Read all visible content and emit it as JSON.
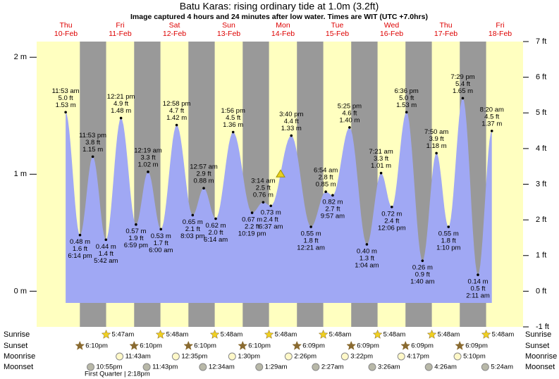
{
  "chart_data": {
    "type": "tide",
    "title": "Batu Karas: rising  ordinary tide at 1.0m (3.2ft)",
    "subtitle": "Image captured 4 hours and 24 minutes after low water. Times are WIT (UTC +7.0hrs)",
    "current_level": 1.0,
    "ylim": [
      -0.305,
      2.134
    ],
    "yticks": [
      {
        "value": 0,
        "label": "0 m"
      },
      {
        "value": 1,
        "label": "1 m"
      },
      {
        "value": 2,
        "label": "2 m"
      }
    ],
    "y2lim": [
      -1,
      7
    ],
    "y2ticks": [
      {
        "value": -1,
        "label": "-1 ft"
      },
      {
        "value": 0,
        "label": "0 ft"
      },
      {
        "value": 1,
        "label": "1 ft"
      },
      {
        "value": 2,
        "label": "2 ft"
      },
      {
        "value": 3,
        "label": "3 ft"
      },
      {
        "value": 4,
        "label": "4 ft"
      },
      {
        "value": 5,
        "label": "5 ft"
      },
      {
        "value": 6,
        "label": "6 ft"
      },
      {
        "value": 7,
        "label": "7 ft"
      }
    ],
    "row_labels": {
      "sunrise": "Sunrise",
      "sunset": "Sunset",
      "moonrise": "Moonrise",
      "moonset": "Moonset"
    },
    "moon_phase": "First Quarter | 2:18pm",
    "days": [
      {
        "day": "Thu",
        "date": "10-Feb",
        "sunset": "6:10pm",
        "moonset": "10:55pm",
        "tides": [
          {
            "time": "11:53 am",
            "ft": "5.0 ft",
            "value": 1.53,
            "value_label": "1.53 m"
          },
          {
            "time": "6:14 pm",
            "ft": "1.6 ft",
            "value": 0.48,
            "value_label": "0.48 m"
          },
          {
            "time": "11:53 pm",
            "ft": "3.8 ft",
            "value": 1.15,
            "value_label": "1.15 m"
          }
        ]
      },
      {
        "day": "Fri",
        "date": "11-Feb",
        "sunrise": "5:47am",
        "sunset": "6:10pm",
        "moonrise": "11:43am",
        "moonset": "11:43pm",
        "tides": [
          {
            "time": "5:42 am",
            "ft": "1.4 ft",
            "value": 0.44,
            "value_label": "0.44 m"
          },
          {
            "time": "12:21 pm",
            "ft": "4.9 ft",
            "value": 1.48,
            "value_label": "1.48 m"
          },
          {
            "time": "6:59 pm",
            "ft": "1.9 ft",
            "value": 0.57,
            "value_label": "0.57 m"
          }
        ]
      },
      {
        "day": "Sat",
        "date": "12-Feb",
        "sunrise": "5:48am",
        "sunset": "6:10pm",
        "moonrise": "12:35pm",
        "tides": [
          {
            "time": "12:19 am",
            "ft": "3.3 ft",
            "value": 1.02,
            "value_label": "1.02 m"
          },
          {
            "time": "6:00 am",
            "ft": "1.7 ft",
            "value": 0.53,
            "value_label": "0.53 m"
          },
          {
            "time": "12:58 pm",
            "ft": "4.7 ft",
            "value": 1.42,
            "value_label": "1.42 m"
          },
          {
            "time": "8:03 pm",
            "ft": "2.1 ft",
            "value": 0.65,
            "value_label": "0.65 m"
          }
        ]
      },
      {
        "day": "Sun",
        "date": "13-Feb",
        "sunrise": "5:48am",
        "sunset": "6:10pm",
        "moonrise": "1:30pm",
        "moonset": "12:34am",
        "tides": [
          {
            "time": "12:57 am",
            "ft": "2.9 ft",
            "value": 0.88,
            "value_label": "0.88 m"
          },
          {
            "time": "6:14 am",
            "ft": "2.0 ft",
            "value": 0.62,
            "value_label": "0.62 m"
          },
          {
            "time": "1:56 pm",
            "ft": "4.5 ft",
            "value": 1.36,
            "value_label": "1.36 m"
          },
          {
            "time": "10:19 pm",
            "ft": "2.2 ft",
            "value": 0.67,
            "value_label": "0.67 m"
          }
        ]
      },
      {
        "day": "Mon",
        "date": "14-Feb",
        "sunrise": "5:48am",
        "sunset": "6:09pm",
        "moonrise": "2:26pm",
        "moonset": "1:29am",
        "tides": [
          {
            "time": "3:14 am",
            "ft": "2.5 ft",
            "value": 0.76,
            "value_label": "0.76 m"
          },
          {
            "time": "6:37 am",
            "ft": "2.4 ft",
            "value": 0.73,
            "value_label": "0.73 m"
          },
          {
            "time": "3:40 pm",
            "ft": "4.4 ft",
            "value": 1.33,
            "value_label": "1.33 m"
          }
        ]
      },
      {
        "day": "Tue",
        "date": "15-Feb",
        "sunrise": "5:48am",
        "sunset": "6:09pm",
        "moonrise": "3:22pm",
        "moonset": "2:27am",
        "tides": [
          {
            "time": "12:21 am",
            "ft": "1.8 ft",
            "value": 0.55,
            "value_label": "0.55 m"
          },
          {
            "time": "6:54 am",
            "ft": "2.8 ft",
            "value": 0.85,
            "value_label": "0.85 m"
          },
          {
            "time": "9:57 am",
            "ft": "2.7 ft",
            "value": 0.82,
            "value_label": "0.82 m"
          },
          {
            "time": "5:25 pm",
            "ft": "4.6 ft",
            "value": 1.4,
            "value_label": "1.40 m"
          }
        ]
      },
      {
        "day": "Wed",
        "date": "16-Feb",
        "sunrise": "5:48am",
        "sunset": "6:09pm",
        "moonrise": "4:17pm",
        "moonset": "3:26am",
        "tides": [
          {
            "time": "1:04 am",
            "ft": "1.3 ft",
            "value": 0.4,
            "value_label": "0.40 m"
          },
          {
            "time": "7:21 am",
            "ft": "3.3 ft",
            "value": 1.01,
            "value_label": "1.01 m"
          },
          {
            "time": "12:06 pm",
            "ft": "2.4 ft",
            "value": 0.72,
            "value_label": "0.72 m"
          },
          {
            "time": "6:36 pm",
            "ft": "5.0 ft",
            "value": 1.53,
            "value_label": "1.53 m"
          }
        ]
      },
      {
        "day": "Thu",
        "date": "17-Feb",
        "sunrise": "5:48am",
        "sunset": "6:09pm",
        "moonrise": "5:10pm",
        "moonset": "4:26am",
        "tides": [
          {
            "time": "1:40 am",
            "ft": "0.9 ft",
            "value": 0.26,
            "value_label": "0.26 m"
          },
          {
            "time": "7:50 am",
            "ft": "3.9 ft",
            "value": 1.18,
            "value_label": "1.18 m"
          },
          {
            "time": "1:10 pm",
            "ft": "1.8 ft",
            "value": 0.55,
            "value_label": "0.55 m"
          },
          {
            "time": "7:29 pm",
            "ft": "5.4 ft",
            "value": 1.65,
            "value_label": "1.65 m"
          }
        ]
      },
      {
        "day": "Fri",
        "date": "18-Feb",
        "sunrise": "5:48am",
        "moonset": "5:24am",
        "tides": [
          {
            "time": "2:11 am",
            "ft": "0.5 ft",
            "value": 0.14,
            "value_label": "0.14 m"
          },
          {
            "time": "8:20 am",
            "ft": "4.5 ft",
            "value": 1.37,
            "value_label": "1.37 m"
          }
        ]
      }
    ]
  }
}
